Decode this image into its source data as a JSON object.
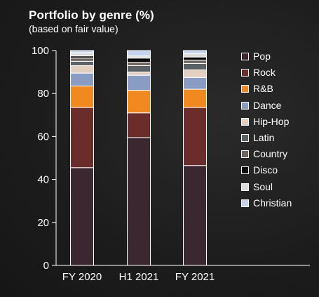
{
  "chart_data": {
    "type": "bar",
    "stacked": true,
    "title": "Portfolio by genre (%)",
    "subtitle": "(based on fair value)",
    "xlabel": "",
    "ylabel": "",
    "ylim": [
      0,
      100
    ],
    "yticks": [
      "0",
      "20",
      "40",
      "60",
      "80",
      "100"
    ],
    "grid": false,
    "legend_position": "right",
    "categories": [
      "FY 2020",
      "H1 2021",
      "FY 2021"
    ],
    "series": [
      {
        "name": "Pop",
        "color": "#3a2730",
        "values": [
          45.5,
          59.5,
          46.5
        ]
      },
      {
        "name": "Rock",
        "color": "#6b2c2c",
        "values": [
          28.0,
          11.5,
          27.0
        ]
      },
      {
        "name": "R&B",
        "color": "#f0891f",
        "values": [
          10.0,
          10.5,
          8.5
        ]
      },
      {
        "name": "Dance",
        "color": "#8a9bc4",
        "values": [
          6.0,
          7.0,
          5.5
        ]
      },
      {
        "name": "Hip-Hop",
        "color": "#e3cfc0",
        "values": [
          3.5,
          1.5,
          3.5
        ]
      },
      {
        "name": "Latin",
        "color": "#5c6166",
        "values": [
          2.0,
          3.0,
          3.0
        ]
      },
      {
        "name": "Country",
        "color": "#6e6460",
        "values": [
          1.5,
          1.5,
          1.5
        ]
      },
      {
        "name": "Disco",
        "color": "#0a0a0a",
        "values": [
          1.0,
          2.0,
          1.5
        ]
      },
      {
        "name": "Soul",
        "color": "#dcdcdc",
        "values": [
          1.5,
          1.0,
          1.5
        ]
      },
      {
        "name": "Christian",
        "color": "#c5d3ef",
        "values": [
          1.0,
          2.5,
          1.5
        ]
      }
    ]
  }
}
